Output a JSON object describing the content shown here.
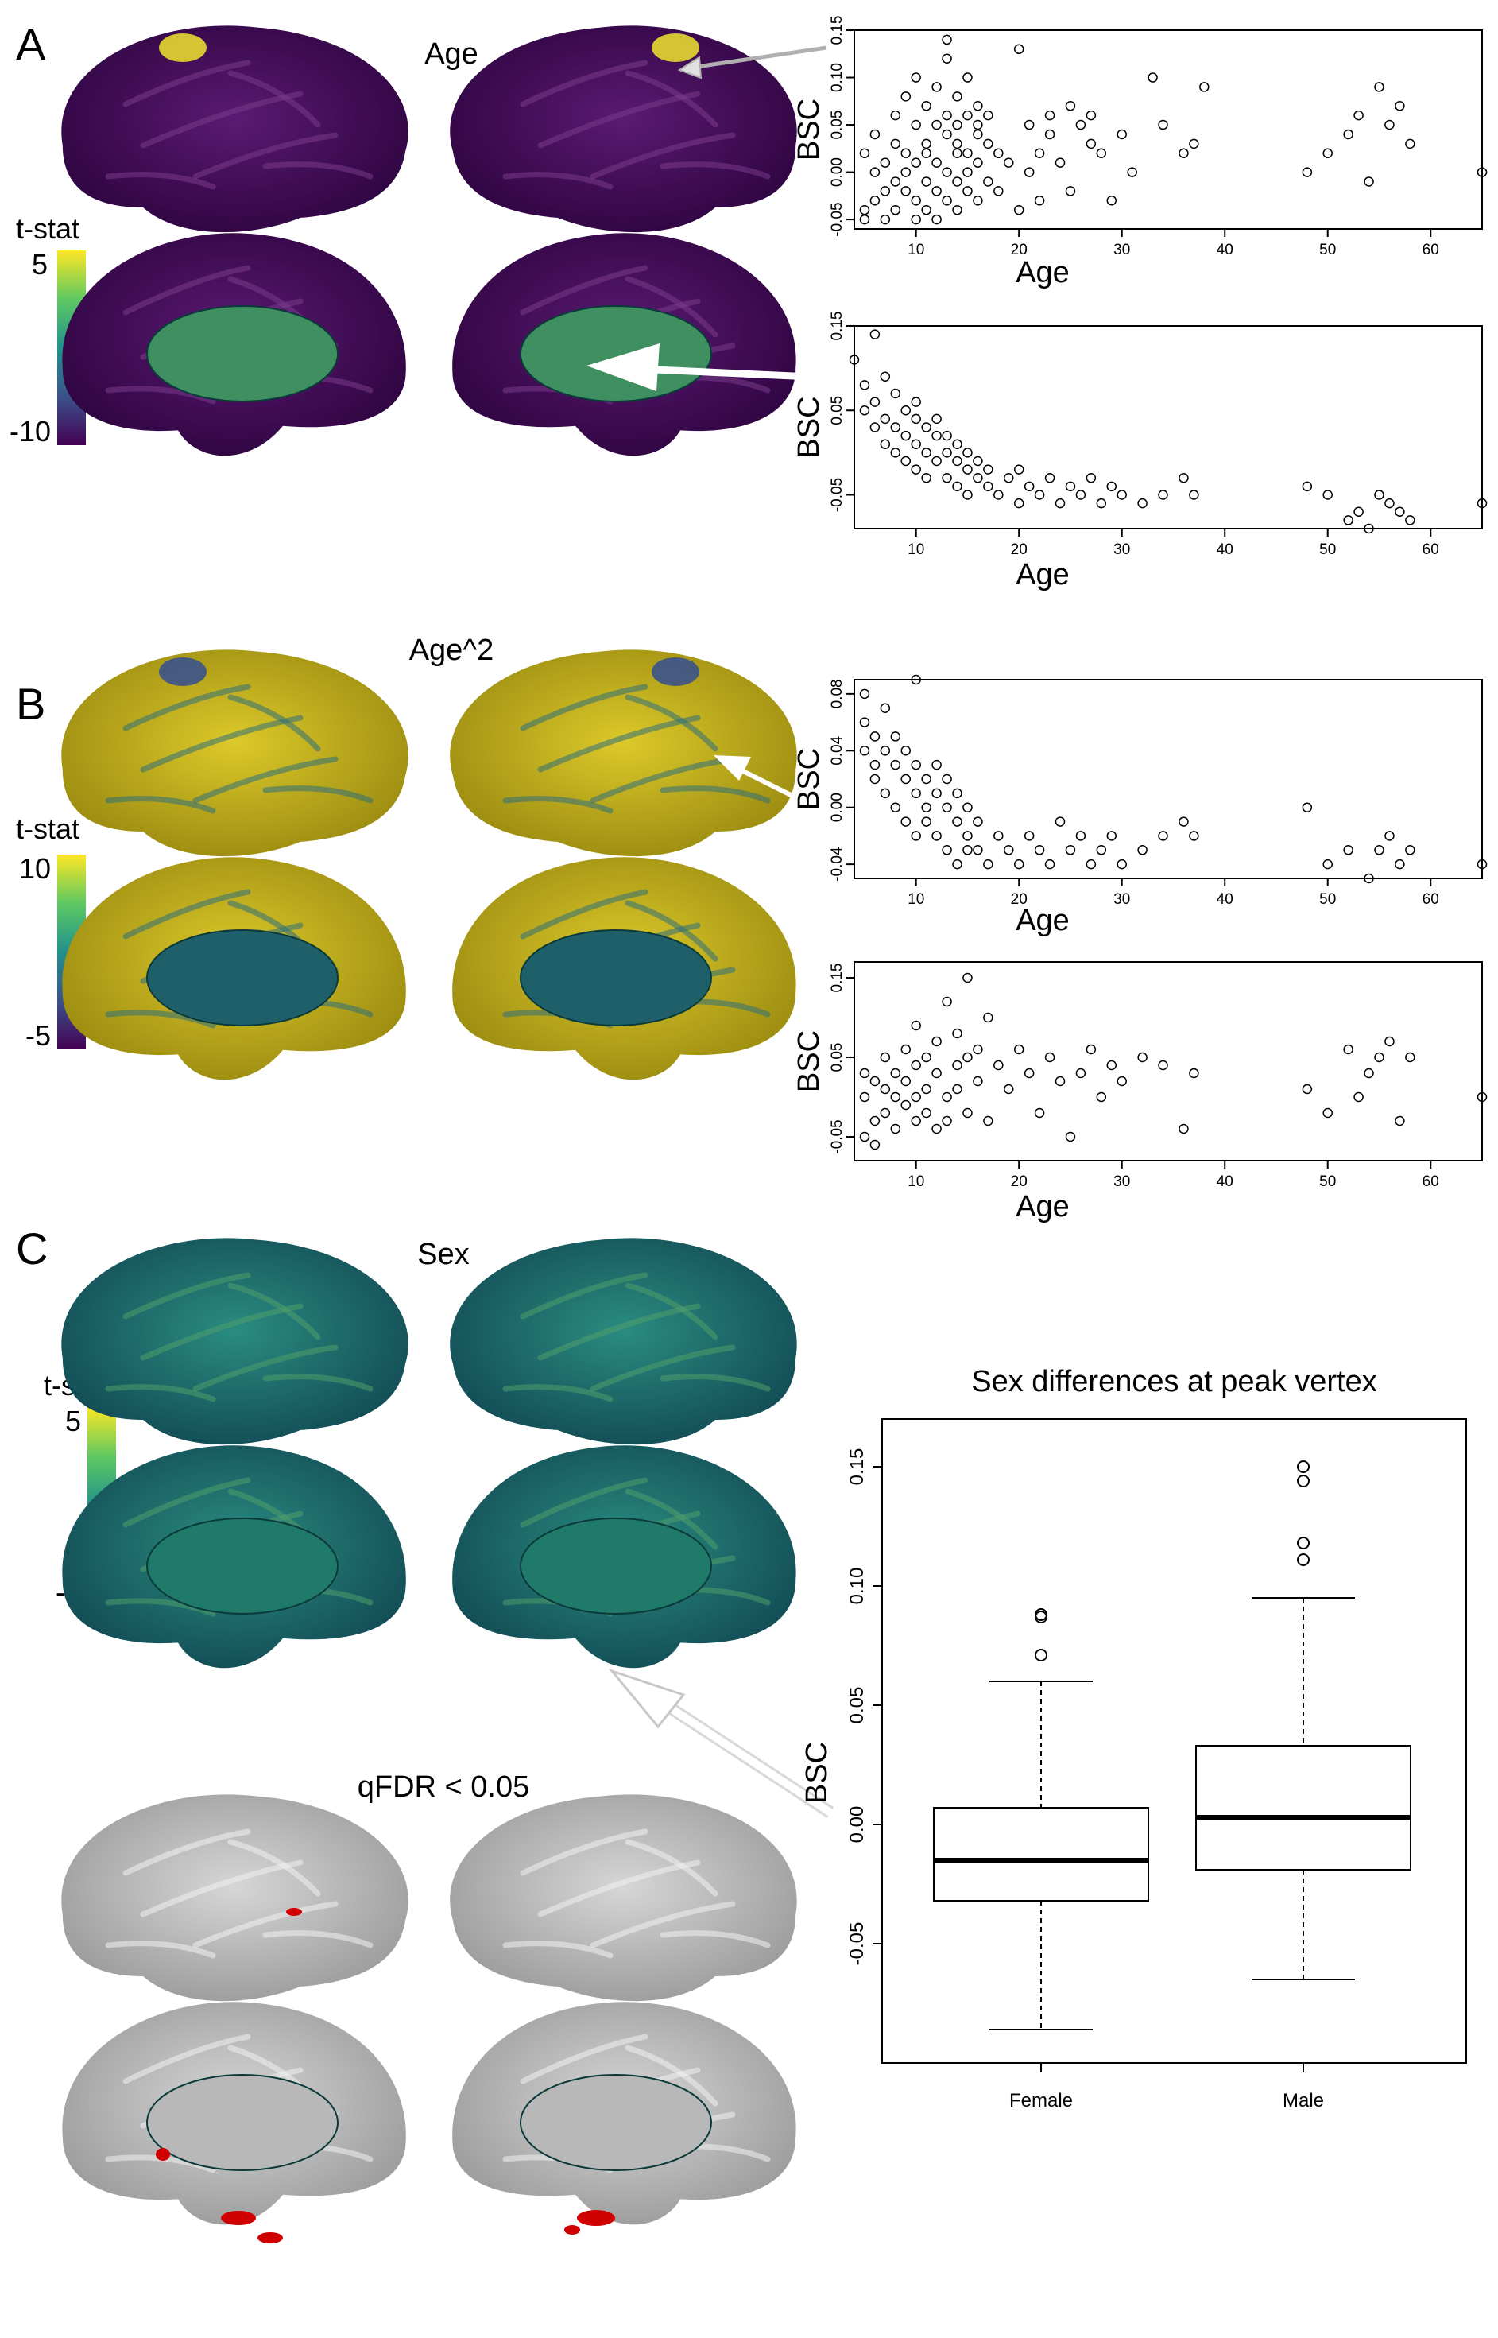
{
  "panels": [
    {
      "letter": "A",
      "title": "Age"
    },
    {
      "letter": "B",
      "title": "Age^2"
    },
    {
      "letter": "C",
      "title": "Sex"
    }
  ],
  "colorbars": [
    {
      "label": "t-stat",
      "max_label": "5",
      "min_label": "-10"
    },
    {
      "label": "t-stat",
      "max_label": "10",
      "min_label": "-5"
    },
    {
      "label": "t-stat",
      "max_label": "5",
      "min_label": "-5"
    }
  ],
  "qfdr_label": "qFDR < 0.05",
  "colors": {
    "viridis_dark": "#440154",
    "viridis_mid": "#21918c",
    "viridis_light": "#fde725",
    "significant_red": "#d00000",
    "surface_gray": "#c8c8c8"
  },
  "chart_data": [
    {
      "type": "scatter",
      "title": "",
      "xlabel": "Age",
      "ylabel": "BSC",
      "xlim": [
        4,
        65
      ],
      "ylim": [
        -0.06,
        0.15
      ],
      "xticks": [
        10,
        20,
        30,
        40,
        50,
        60
      ],
      "yticks": [
        -0.05,
        0.0,
        0.05,
        0.1,
        0.15
      ],
      "ytick_labels": [
        "-0.05",
        "0.00",
        "0.05",
        "0.10",
        "0.15"
      ],
      "trend": "weak positive increase",
      "x": [
        5,
        5,
        5,
        6,
        6,
        6,
        7,
        7,
        7,
        8,
        8,
        8,
        8,
        9,
        9,
        9,
        9,
        10,
        10,
        10,
        10,
        10,
        11,
        11,
        11,
        11,
        11,
        12,
        12,
        12,
        12,
        12,
        13,
        13,
        13,
        13,
        13,
        13,
        14,
        14,
        14,
        14,
        14,
        14,
        15,
        15,
        15,
        15,
        15,
        16,
        16,
        16,
        16,
        16,
        17,
        17,
        17,
        18,
        18,
        19,
        20,
        20,
        21,
        21,
        22,
        22,
        23,
        23,
        24,
        25,
        25,
        26,
        27,
        27,
        28,
        29,
        30,
        31,
        33,
        34,
        36,
        37,
        38,
        48,
        50,
        52,
        53,
        54,
        55,
        56,
        57,
        58,
        65
      ],
      "y": [
        -0.04,
        0.02,
        -0.05,
        0.0,
        -0.03,
        0.04,
        -0.02,
        0.01,
        -0.05,
        0.03,
        -0.01,
        0.06,
        -0.04,
        0.02,
        -0.02,
        0.08,
        0.0,
        -0.03,
        0.05,
        0.01,
        -0.05,
        0.1,
        0.02,
        -0.01,
        0.07,
        -0.04,
        0.03,
        0.01,
        0.05,
        -0.02,
        0.09,
        -0.05,
        0.14,
        0.0,
        0.04,
        -0.03,
        0.06,
        0.12,
        0.02,
        -0.01,
        0.08,
        -0.04,
        0.05,
        0.03,
        0.0,
        0.06,
        -0.02,
        0.1,
        0.02,
        0.04,
        -0.03,
        0.07,
        0.01,
        0.05,
        0.03,
        -0.01,
        0.06,
        0.02,
        -0.02,
        0.01,
        0.13,
        -0.04,
        0.05,
        0.0,
        0.02,
        -0.03,
        0.04,
        0.06,
        0.01,
        -0.02,
        0.07,
        0.05,
        0.03,
        0.06,
        0.02,
        -0.03,
        0.04,
        0.0,
        0.1,
        0.05,
        0.02,
        0.03,
        0.09,
        0.0,
        0.02,
        0.04,
        0.06,
        -0.01,
        0.09,
        0.05,
        0.07,
        0.03,
        0.0
      ]
    },
    {
      "type": "scatter",
      "title": "",
      "xlabel": "Age",
      "ylabel": "BSC",
      "xlim": [
        4,
        65
      ],
      "ylim": [
        -0.09,
        0.15
      ],
      "xticks": [
        10,
        20,
        30,
        40,
        50,
        60
      ],
      "yticks": [
        -0.05,
        0.05,
        0.15
      ],
      "ytick_labels": [
        "-0.05",
        "0.05",
        "0.15"
      ],
      "trend": "strong decrease with age",
      "x": [
        4,
        5,
        5,
        6,
        6,
        6,
        7,
        7,
        7,
        8,
        8,
        8,
        9,
        9,
        9,
        10,
        10,
        10,
        10,
        11,
        11,
        11,
        12,
        12,
        12,
        13,
        13,
        13,
        14,
        14,
        14,
        15,
        15,
        15,
        16,
        16,
        17,
        17,
        18,
        19,
        20,
        20,
        21,
        22,
        23,
        24,
        25,
        26,
        27,
        28,
        29,
        30,
        32,
        34,
        36,
        37,
        48,
        50,
        52,
        53,
        54,
        55,
        56,
        57,
        58,
        65
      ],
      "y": [
        0.11,
        0.08,
        0.05,
        0.14,
        0.06,
        0.03,
        0.09,
        0.04,
        0.01,
        0.07,
        0.03,
        0.0,
        0.05,
        0.02,
        -0.01,
        0.04,
        0.01,
        -0.02,
        0.06,
        0.03,
        0.0,
        -0.03,
        0.02,
        -0.01,
        0.04,
        0.0,
        -0.03,
        0.02,
        -0.01,
        -0.04,
        0.01,
        -0.02,
        -0.05,
        0.0,
        -0.03,
        -0.01,
        -0.04,
        -0.02,
        -0.05,
        -0.03,
        -0.06,
        -0.02,
        -0.04,
        -0.05,
        -0.03,
        -0.06,
        -0.04,
        -0.05,
        -0.03,
        -0.06,
        -0.04,
        -0.05,
        -0.06,
        -0.05,
        -0.03,
        -0.05,
        -0.04,
        -0.05,
        -0.08,
        -0.07,
        -0.09,
        -0.05,
        -0.06,
        -0.07,
        -0.08,
        -0.06
      ]
    },
    {
      "type": "scatter",
      "title": "",
      "xlabel": "Age",
      "ylabel": "BSC",
      "xlim": [
        4,
        65
      ],
      "ylim": [
        -0.05,
        0.09
      ],
      "xticks": [
        10,
        20,
        30,
        40,
        50,
        60
      ],
      "yticks": [
        -0.04,
        0.0,
        0.04,
        0.08
      ],
      "ytick_labels": [
        "-0.04",
        "0.00",
        "0.04",
        "0.08"
      ],
      "trend": "decrease with age",
      "x": [
        5,
        5,
        5,
        6,
        6,
        6,
        7,
        7,
        7,
        8,
        8,
        8,
        9,
        9,
        9,
        10,
        10,
        10,
        10,
        11,
        11,
        11,
        12,
        12,
        12,
        13,
        13,
        13,
        14,
        14,
        14,
        15,
        15,
        15,
        16,
        16,
        17,
        18,
        19,
        20,
        21,
        22,
        23,
        24,
        25,
        26,
        27,
        28,
        29,
        30,
        32,
        34,
        36,
        37,
        48,
        50,
        52,
        54,
        55,
        56,
        57,
        58,
        65
      ],
      "y": [
        0.06,
        0.04,
        0.08,
        0.05,
        0.03,
        0.02,
        0.07,
        0.04,
        0.01,
        0.05,
        0.03,
        0.0,
        0.04,
        0.02,
        -0.01,
        0.03,
        0.01,
        -0.02,
        0.09,
        0.02,
        0.0,
        -0.01,
        0.03,
        0.01,
        -0.02,
        0.02,
        0.0,
        -0.03,
        0.01,
        -0.01,
        -0.04,
        0.0,
        -0.02,
        -0.03,
        -0.01,
        -0.03,
        -0.04,
        -0.02,
        -0.03,
        -0.04,
        -0.02,
        -0.03,
        -0.04,
        -0.01,
        -0.03,
        -0.02,
        -0.04,
        -0.03,
        -0.02,
        -0.04,
        -0.03,
        -0.02,
        -0.01,
        -0.02,
        0.0,
        -0.04,
        -0.03,
        -0.05,
        -0.03,
        -0.02,
        -0.04,
        -0.03,
        -0.04
      ]
    },
    {
      "type": "scatter",
      "title": "",
      "xlabel": "Age",
      "ylabel": "BSC",
      "xlim": [
        4,
        65
      ],
      "ylim": [
        -0.08,
        0.17
      ],
      "xticks": [
        10,
        20,
        30,
        40,
        50,
        60
      ],
      "yticks": [
        -0.05,
        0.05,
        0.15
      ],
      "ytick_labels": [
        "-0.05",
        "0.05",
        "0.15"
      ],
      "trend": "weak positive increase",
      "x": [
        5,
        5,
        5,
        6,
        6,
        6,
        7,
        7,
        7,
        8,
        8,
        8,
        9,
        9,
        9,
        10,
        10,
        10,
        10,
        11,
        11,
        11,
        12,
        12,
        12,
        13,
        13,
        13,
        14,
        14,
        14,
        15,
        15,
        15,
        16,
        16,
        17,
        17,
        18,
        19,
        20,
        21,
        22,
        23,
        24,
        25,
        26,
        27,
        28,
        29,
        30,
        32,
        34,
        36,
        37,
        48,
        50,
        52,
        53,
        54,
        55,
        56,
        57,
        58,
        65
      ],
      "y": [
        0.0,
        -0.05,
        0.03,
        -0.03,
        0.02,
        -0.06,
        0.01,
        -0.02,
        0.05,
        0.0,
        -0.04,
        0.03,
        0.02,
        -0.01,
        0.06,
        -0.03,
        0.04,
        0.0,
        0.09,
        -0.02,
        0.05,
        0.01,
        0.03,
        -0.04,
        0.07,
        0.0,
        0.12,
        -0.03,
        0.04,
        0.01,
        0.08,
        -0.02,
        0.05,
        0.15,
        0.02,
        0.06,
        0.1,
        -0.03,
        0.04,
        0.01,
        0.06,
        0.03,
        -0.02,
        0.05,
        0.02,
        -0.05,
        0.03,
        0.06,
        0.0,
        0.04,
        0.02,
        0.05,
        0.04,
        -0.04,
        0.03,
        0.01,
        -0.02,
        0.06,
        0.0,
        0.03,
        0.05,
        0.07,
        -0.03,
        0.05,
        0.0
      ]
    },
    {
      "type": "box",
      "title": "Sex differences at peak vertex",
      "xlabel": "",
      "ylabel": "BSC",
      "categories": [
        "Female",
        "Male"
      ],
      "ylim": [
        -0.1,
        0.17
      ],
      "yticks": [
        -0.05,
        0.0,
        0.05,
        0.1,
        0.15
      ],
      "ytick_labels": [
        "-0.05",
        "0.00",
        "0.05",
        "0.10",
        "0.15"
      ],
      "boxes": [
        {
          "name": "Female",
          "whisker_low": -0.086,
          "q1": -0.032,
          "median": -0.015,
          "q3": 0.007,
          "whisker_high": 0.06,
          "outliers": [
            0.071,
            0.087,
            0.088
          ]
        },
        {
          "name": "Male",
          "whisker_low": -0.065,
          "q1": -0.019,
          "median": 0.003,
          "q3": 0.033,
          "whisker_high": 0.095,
          "outliers": [
            0.111,
            0.118,
            0.144,
            0.15
          ]
        }
      ]
    }
  ]
}
